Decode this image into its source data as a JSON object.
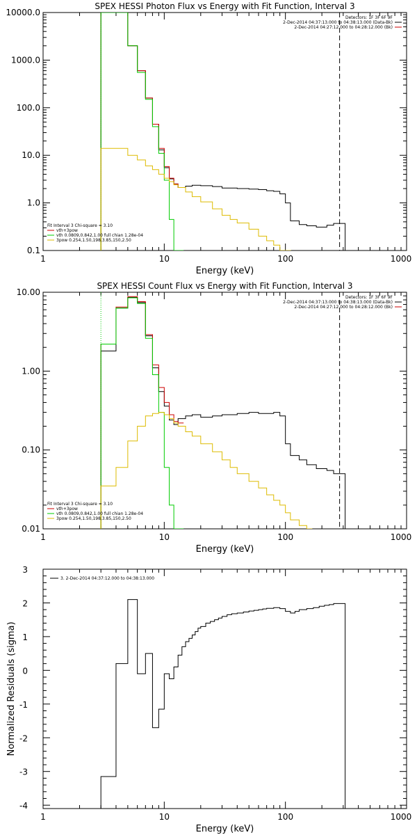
{
  "colors": {
    "total": "#000000",
    "fit": "#cc0000",
    "thermal": "#00cc00",
    "powerlaw": "#ddbb00",
    "axis": "#000000"
  },
  "chart_data": [
    {
      "type": "line",
      "title": "SPEX HESSI Photon Flux vs Energy with Fit Function, Interval 3",
      "xlabel": "Energy (keV)",
      "ylabel": "",
      "xscale": "log",
      "yscale": "log",
      "xlim": [
        1,
        1000
      ],
      "ylim": [
        0.1,
        10000
      ],
      "xticks": [
        "1",
        "10",
        "100",
        "1000"
      ],
      "yticks": [
        "0.1",
        "1.0",
        "10.0",
        "100.0",
        "1000.0",
        "10000.0"
      ],
      "legend_top": [
        "Detectors: 1F 3F 6F 9F",
        "2-Dec-2014 04:37:13.000 to 04:38:13.000 (Data-Bk)",
        "2-Dec-2014 04:27:12.000 to 04:28:12.000 (Bk)"
      ],
      "legend_bottom": [
        "Fit Interval 3   Chi-square = 3.10",
        "vth+3pow",
        "vth 0.0809,0.842,1.00  full chian 1.28e-04",
        "3pow 0.254,1.50,198,3.85,150,2.50"
      ],
      "vlines": [
        3.0,
        280
      ],
      "series": [
        {
          "role": "data",
          "x": [
            3,
            4,
            5,
            6,
            7,
            8,
            9,
            10,
            11,
            12,
            13,
            15,
            17,
            20,
            25,
            30,
            40,
            50,
            60,
            70,
            80,
            90,
            100,
            110,
            130,
            150,
            180,
            220,
            250,
            280
          ],
          "y": [
            10000,
            10000,
            2000,
            600,
            160,
            45,
            13,
            5.5,
            3.2,
            2.5,
            2.1,
            2.25,
            2.35,
            2.3,
            2.2,
            2.05,
            2.0,
            1.95,
            1.9,
            1.8,
            1.75,
            1.55,
            1.0,
            0.42,
            0.35,
            0.33,
            0.31,
            0.34,
            0.37,
            0.37
          ]
        },
        {
          "role": "fit",
          "x": [
            3,
            4,
            5,
            6,
            7,
            8,
            9,
            10,
            11,
            12,
            13
          ],
          "y": [
            10000,
            10000,
            2000,
            600,
            160,
            45,
            14,
            5.8,
            3.3,
            2.5,
            2.1
          ]
        },
        {
          "role": "thermal",
          "x": [
            3,
            4,
            5,
            6,
            7,
            8,
            9,
            10,
            11,
            12,
            13
          ],
          "y": [
            10000,
            10000,
            2000,
            550,
            150,
            40,
            11,
            3.0,
            0.45,
            0.1,
            0.1
          ]
        },
        {
          "role": "powerlaw",
          "x": [
            3,
            4,
            5,
            6,
            7,
            8,
            9,
            10,
            11,
            12,
            13,
            15,
            17,
            20,
            25,
            30,
            35,
            40,
            50,
            60,
            70,
            80,
            90,
            100
          ],
          "y": [
            14,
            14,
            10,
            8,
            6,
            5,
            4,
            3.3,
            2.8,
            2.4,
            2.1,
            1.7,
            1.35,
            1.05,
            0.75,
            0.55,
            0.45,
            0.38,
            0.28,
            0.2,
            0.16,
            0.13,
            0.1,
            0.1
          ]
        }
      ]
    },
    {
      "type": "line",
      "title": "SPEX HESSI Count Flux vs Energy with Fit Function, Interval 3",
      "xlabel": "Energy (keV)",
      "ylabel": "",
      "xscale": "log",
      "yscale": "log",
      "xlim": [
        1,
        1000
      ],
      "ylim": [
        0.01,
        10
      ],
      "xticks": [
        "1",
        "10",
        "100",
        "1000"
      ],
      "yticks": [
        "0.01",
        "0.10",
        "1.00",
        "10.00"
      ],
      "legend_top": [
        "Detectors: 1F 3F 6F 9F",
        "2-Dec-2014 04:37:13.000 to 04:38:13.000 (Data-Bk)",
        "2-Dec-2014 04:27:12.000 to 04:28:12.000 (Bk)"
      ],
      "legend_bottom": [
        "Fit Interval 3   Chi-square = 3.10",
        "vth+3pow",
        "vth 0.0809,0.842,1.00  full chian 1.28e-04",
        "3pow 0.254,1.50,198,3.85,150,2.50"
      ],
      "vlines": [
        3.0,
        280
      ],
      "series": [
        {
          "role": "data",
          "x": [
            3,
            4,
            5,
            6,
            7,
            8,
            9,
            10,
            11,
            12,
            13,
            15,
            17,
            20,
            25,
            30,
            40,
            50,
            60,
            70,
            80,
            90,
            100,
            110,
            130,
            150,
            180,
            220,
            250,
            280
          ],
          "y": [
            1.8,
            6.3,
            8.6,
            7.4,
            2.8,
            1.1,
            0.55,
            0.36,
            0.24,
            0.21,
            0.25,
            0.27,
            0.28,
            0.26,
            0.27,
            0.28,
            0.29,
            0.3,
            0.29,
            0.29,
            0.3,
            0.27,
            0.12,
            0.085,
            0.075,
            0.065,
            0.058,
            0.055,
            0.05,
            0.05
          ]
        },
        {
          "role": "fit",
          "x": [
            3,
            4,
            5,
            6,
            7,
            8,
            9,
            10,
            11,
            12,
            13
          ],
          "y": [
            2.2,
            6.5,
            8.8,
            7.6,
            2.9,
            1.2,
            0.62,
            0.4,
            0.28,
            0.23,
            0.22
          ]
        },
        {
          "role": "thermal",
          "x": [
            3,
            4,
            5,
            6,
            7,
            8,
            9,
            10,
            11,
            12,
            13
          ],
          "y": [
            2.2,
            6.3,
            8.5,
            7.2,
            2.6,
            0.9,
            0.3,
            0.06,
            0.02,
            0.01,
            0.01
          ]
        },
        {
          "role": "powerlaw",
          "x": [
            3,
            4,
            5,
            6,
            7,
            8,
            9,
            10,
            11,
            12,
            13,
            15,
            17,
            20,
            25,
            30,
            35,
            40,
            50,
            60,
            70,
            80,
            90,
            100,
            110,
            130,
            150
          ],
          "y": [
            0.035,
            0.06,
            0.13,
            0.2,
            0.27,
            0.29,
            0.3,
            0.28,
            0.25,
            0.22,
            0.2,
            0.17,
            0.15,
            0.12,
            0.095,
            0.075,
            0.06,
            0.05,
            0.04,
            0.033,
            0.027,
            0.023,
            0.02,
            0.016,
            0.013,
            0.011,
            0.01
          ]
        }
      ]
    },
    {
      "type": "line",
      "title": "",
      "xlabel": "Energy (keV)",
      "ylabel": "Normalized Residuals (sigma)",
      "xscale": "log",
      "yscale": "linear",
      "xlim": [
        1,
        1000
      ],
      "ylim": [
        -4.1,
        3
      ],
      "xticks": [
        "1",
        "10",
        "100",
        "1000"
      ],
      "yticks": [
        "-4",
        "-3",
        "-2",
        "-1",
        "0",
        "1",
        "2",
        "3"
      ],
      "legend_top": [
        "3.  2-Dec-2014 04:37:12.000 to 04:38:13.000"
      ],
      "legend_bottom": [],
      "vlines": [],
      "series": [
        {
          "role": "data",
          "x": [
            3,
            4,
            5,
            6,
            7,
            8,
            9,
            10,
            11,
            12,
            13,
            14,
            15,
            16,
            17,
            18,
            19,
            20,
            22,
            24,
            26,
            28,
            30,
            33,
            36,
            40,
            45,
            50,
            55,
            60,
            65,
            70,
            80,
            90,
            100,
            110,
            120,
            130,
            150,
            170,
            190,
            210,
            230,
            250,
            280
          ],
          "y": [
            -3.15,
            0.2,
            2.1,
            -0.1,
            0.5,
            -1.7,
            -1.15,
            -0.1,
            -0.25,
            0.1,
            0.45,
            0.7,
            0.85,
            0.95,
            1.05,
            1.15,
            1.25,
            1.3,
            1.4,
            1.45,
            1.5,
            1.55,
            1.6,
            1.65,
            1.68,
            1.7,
            1.73,
            1.76,
            1.78,
            1.8,
            1.82,
            1.84,
            1.86,
            1.83,
            1.75,
            1.7,
            1.75,
            1.8,
            1.83,
            1.86,
            1.9,
            1.93,
            1.95,
            1.98,
            1.98
          ]
        }
      ]
    }
  ]
}
